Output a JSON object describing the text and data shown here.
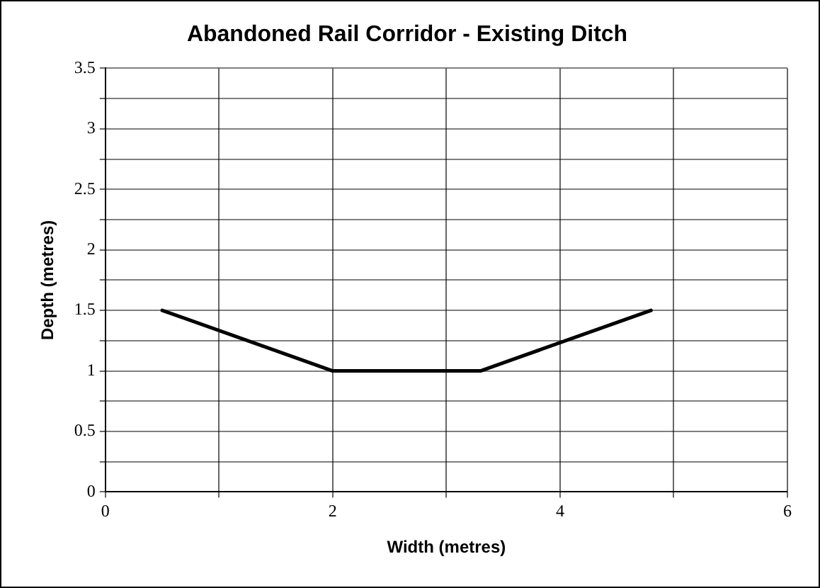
{
  "chart_data": {
    "type": "line",
    "title": "Abandoned Rail Corridor - Existing Ditch",
    "xlabel": "Width (metres)",
    "ylabel": "Depth (metres)",
    "x": [
      0.5,
      2,
      3.3,
      4.8
    ],
    "series": [
      {
        "color": "#000000",
        "values": [
          1.5,
          1,
          1,
          1.5
        ]
      }
    ],
    "xlim": [
      0,
      6
    ],
    "xticks": [
      0,
      {
        "value": 1,
        "label": null
      },
      2,
      {
        "value": 3,
        "label": null
      },
      4,
      {
        "value": 5,
        "label": null
      },
      6
    ],
    "ylim": [
      0,
      3.5
    ],
    "yticks": [
      0,
      {
        "value": 0.25,
        "label": null
      },
      0.5,
      {
        "value": 0.75,
        "label": null
      },
      1,
      {
        "value": 1.25,
        "label": null
      },
      1.5,
      {
        "value": 1.75,
        "label": null
      },
      2,
      {
        "value": 2.25,
        "label": null
      },
      2.5,
      {
        "value": 2.75,
        "label": null
      },
      3,
      {
        "value": 3.25,
        "label": null
      },
      3.5
    ],
    "grid": true,
    "legend": false,
    "marker": "none",
    "line_style": "solid"
  }
}
